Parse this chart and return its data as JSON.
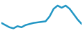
{
  "x": [
    0,
    1,
    2,
    3,
    4,
    5,
    6,
    7,
    8,
    9,
    10,
    11,
    12,
    13,
    14,
    15,
    16,
    17,
    18,
    19,
    20
  ],
  "y": [
    22,
    20,
    18,
    17,
    19,
    18,
    20,
    21,
    22,
    22.5,
    23,
    23.5,
    28,
    35,
    38,
    36,
    38,
    35,
    30,
    25,
    21
  ],
  "line_color": "#2196c4",
  "background_color": "#ffffff",
  "linewidth": 1.8
}
